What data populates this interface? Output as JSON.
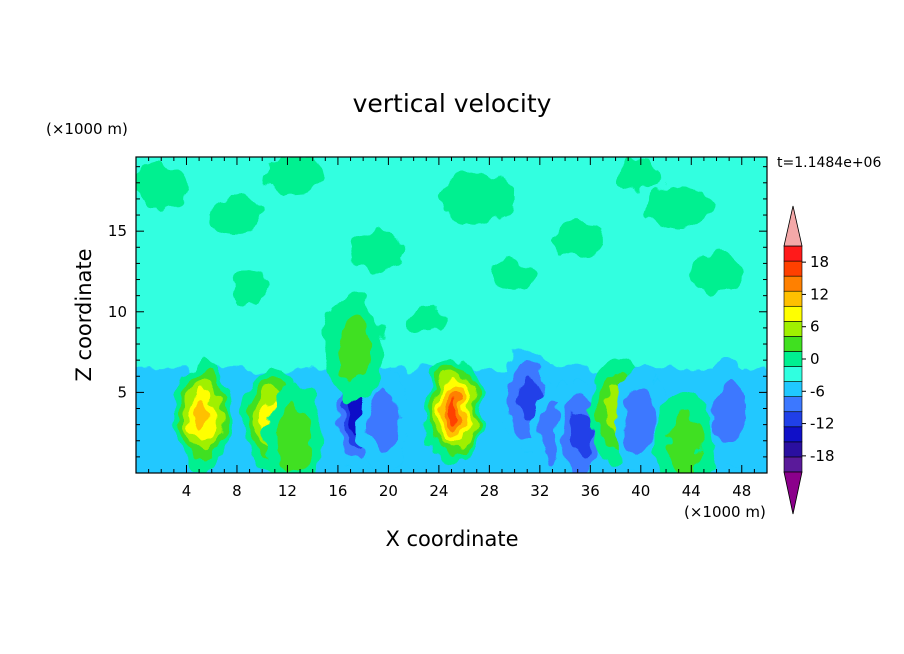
{
  "chart_data": {
    "type": "heatmap",
    "title": "vertical velocity",
    "xlabel": "X coordinate",
    "ylabel": "Z coordinate",
    "x_unit": "(×1000 m)",
    "y_unit": "(×1000 m)",
    "time_label": "t=1.1484e+06",
    "xlim": [
      0,
      50
    ],
    "ylim": [
      0,
      19.6
    ],
    "x_ticks": [
      4,
      8,
      12,
      16,
      20,
      24,
      28,
      32,
      36,
      40,
      44,
      48
    ],
    "y_ticks": [
      5,
      10,
      15
    ],
    "colorbar": {
      "levels": [
        -21,
        -18,
        -15,
        -12,
        -9,
        -6,
        -3,
        0,
        3,
        6,
        9,
        12,
        15,
        18,
        21
      ],
      "colors": [
        "#5a1a9a",
        "#2a0fa0",
        "#1010c8",
        "#2040e8",
        "#3c78ff",
        "#20c8ff",
        "#30ffe0",
        "#00f090",
        "#40e020",
        "#a0f000",
        "#ffff00",
        "#ffc000",
        "#ff8000",
        "#ff4000",
        "#ff1a1a"
      ],
      "under_color": "#8b008b",
      "over_color": "#f4a8a8",
      "tick_labels": [
        "18",
        "12",
        "6",
        "0",
        "-6",
        "-12",
        "-18"
      ]
    },
    "features": [
      {
        "x": 5.3,
        "z": 3.6,
        "w": 13
      },
      {
        "x": 10.8,
        "z": 3.4,
        "w": 9.5
      },
      {
        "x": 12.5,
        "z": 2.2,
        "w": 5
      },
      {
        "x": 17.5,
        "z": 3.6,
        "w": -13
      },
      {
        "x": 19.6,
        "z": 3.2,
        "w": -9
      },
      {
        "x": 25.2,
        "z": 3.8,
        "w": 19
      },
      {
        "x": 31.0,
        "z": 4.5,
        "w": -10
      },
      {
        "x": 33.3,
        "z": 2.5,
        "w": -8
      },
      {
        "x": 35.2,
        "z": 2.4,
        "w": -10
      },
      {
        "x": 38.2,
        "z": 3.8,
        "w": 9
      },
      {
        "x": 40.0,
        "z": 3.2,
        "w": -8
      },
      {
        "x": 47.0,
        "z": 3.8,
        "w": -9
      },
      {
        "x": 43.5,
        "z": 1.8,
        "w": 6
      },
      {
        "x": 17.3,
        "z": 7.7,
        "w": 6
      }
    ]
  }
}
